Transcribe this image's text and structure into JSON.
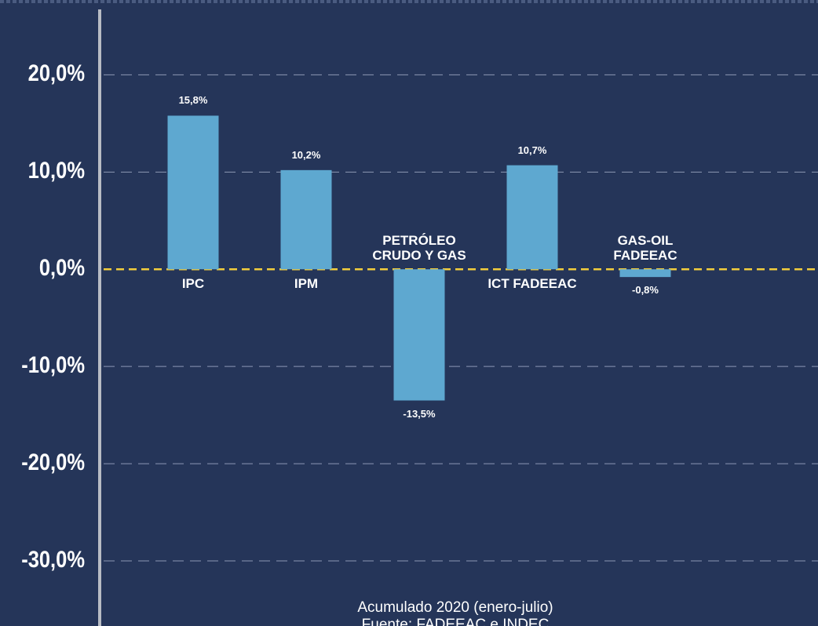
{
  "chart_data": {
    "type": "bar",
    "categories": [
      "IPC",
      "IPM",
      "PETRÓLEO CRUDO Y GAS",
      "ICT FADEEAC",
      "GAS-OIL FADEEAC"
    ],
    "values": [
      15.8,
      10.2,
      -13.5,
      10.7,
      -0.8
    ],
    "value_labels": [
      "15,8%",
      "10,2%",
      "-13,5%",
      "10,7%",
      "-0,8%"
    ],
    "color": "#5ea8d0",
    "ylim": [
      -36.7,
      27.7
    ],
    "yticks": [
      {
        "value": 20,
        "label": "20,0%"
      },
      {
        "value": 10,
        "label": "10,0%"
      },
      {
        "value": 0,
        "label": "0,0%"
      },
      {
        "value": -10,
        "label": "-10,0%"
      },
      {
        "value": -20,
        "label": "-20,0%"
      },
      {
        "value": -30,
        "label": "-30,0%"
      }
    ],
    "grid": true,
    "annotations": [
      "Acumulado 2020 (enero-julio)",
      "Fuente: FADEEAC e INDEC"
    ]
  }
}
